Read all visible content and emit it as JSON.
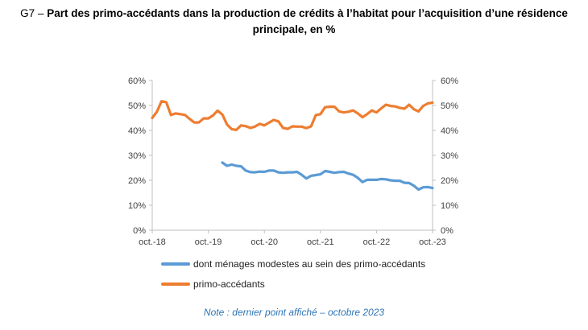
{
  "title": {
    "prefix": "G7 – ",
    "text": "Part des primo-accédants dans la production de crédits à l’habitat pour l’acquisition d’une résidence principale, en %"
  },
  "note": "Note : dernier point affiché – octobre 2023",
  "colors": {
    "blue": "#5B9BD5",
    "orange": "#ED7D31",
    "axis": "#BFBFBF",
    "note": "#2E75B6"
  },
  "chart_data": {
    "type": "line",
    "ylim": [
      0,
      60
    ],
    "y_ticks": [
      "0%",
      "10%",
      "20%",
      "30%",
      "40%",
      "50%",
      "60%"
    ],
    "x_tick_labels": [
      "oct.-18",
      "oct.-19",
      "oct.-20",
      "oct.-21",
      "oct.-22",
      "oct.-23"
    ],
    "x_tick_months": [
      0,
      12,
      24,
      36,
      48,
      60
    ],
    "secondary_axis": true,
    "legend_position": "bottom",
    "series": [
      {
        "name": "dont ménages modestes au sein des primo-accédants",
        "color": "#5B9BD5",
        "start_month": 15,
        "values": [
          27.1,
          25.8,
          26.3,
          25.8,
          25.6,
          23.9,
          23.3,
          23.2,
          23.5,
          23.4,
          23.9,
          23.9,
          23.2,
          23.0,
          23.2,
          23.2,
          23.4,
          22.2,
          20.7,
          21.8,
          22.1,
          22.4,
          23.7,
          23.4,
          23.0,
          23.3,
          23.4,
          22.7,
          22.2,
          21.0,
          19.3,
          20.2,
          20.2,
          20.2,
          20.5,
          20.4,
          20.0,
          19.8,
          19.8,
          19.0,
          18.9,
          17.8,
          16.3,
          17.2,
          17.3,
          16.9
        ]
      },
      {
        "name": "primo-accédants",
        "color": "#ED7D31",
        "start_month": 0,
        "values": [
          45.0,
          47.5,
          51.7,
          51.3,
          46.2,
          46.8,
          46.5,
          46.2,
          44.6,
          43.2,
          43.2,
          44.8,
          44.8,
          46.0,
          47.9,
          46.4,
          42.4,
          40.5,
          40.2,
          42.0,
          41.7,
          41.0,
          41.5,
          42.6,
          42.0,
          43.1,
          44.2,
          43.6,
          41.0,
          40.6,
          41.6,
          41.5,
          41.5,
          40.9,
          41.6,
          46.1,
          46.5,
          49.3,
          49.5,
          49.5,
          47.6,
          47.2,
          47.5,
          48.0,
          46.8,
          45.3,
          46.5,
          48.0,
          47.2,
          48.8,
          50.3,
          49.8,
          49.6,
          49.0,
          48.7,
          50.3,
          48.5,
          47.6,
          49.8,
          50.8,
          51.1
        ]
      }
    ]
  }
}
